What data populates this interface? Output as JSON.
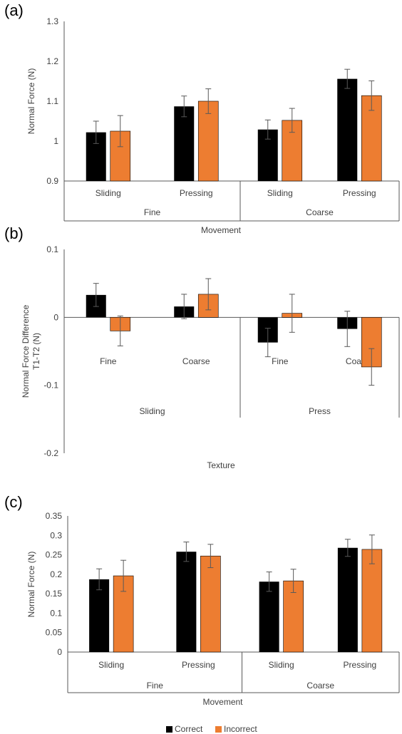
{
  "colors": {
    "correct": "#000000",
    "incorrect": "#ED7D31",
    "axis": "#595959",
    "error": "#595959",
    "text": "#404040"
  },
  "legend": {
    "correct": "Correct",
    "incorrect": "Incorrect"
  },
  "chart_data": [
    {
      "panel": "(a)",
      "type": "bar",
      "ylabel": "Normal Force (N)",
      "xlabel": "Movement",
      "ylim": [
        0.9,
        1.3
      ],
      "yticks": [
        "0.9",
        "1",
        "1.1",
        "1.2",
        "1.3"
      ],
      "groups": [
        "Fine",
        "Coarse"
      ],
      "categories": [
        "Sliding",
        "Pressing",
        "Sliding",
        "Pressing"
      ],
      "series": [
        {
          "name": "Correct",
          "values": [
            1.022,
            1.087,
            1.029,
            1.156
          ],
          "errors": [
            0.028,
            0.026,
            0.024,
            0.024
          ]
        },
        {
          "name": "Incorrect",
          "values": [
            1.025,
            1.1,
            1.052,
            1.114
          ],
          "errors": [
            0.039,
            0.031,
            0.03,
            0.037
          ]
        }
      ]
    },
    {
      "panel": "(b)",
      "type": "bar",
      "ylabel": "Normal Force  Difference T1-T2 (N)",
      "ylabel_lines": [
        "Normal Force  Difference",
        "T1-T2 (N)"
      ],
      "xlabel": "Texture",
      "ylim": [
        -0.2,
        0.1
      ],
      "yticks": [
        "-0.2",
        "-0.1",
        "0",
        "0.1"
      ],
      "groups": [
        "Sliding",
        "Press"
      ],
      "categories": [
        "Fine",
        "Coarse",
        "Fine",
        "Coarse"
      ],
      "series": [
        {
          "name": "Correct",
          "values": [
            0.033,
            0.016,
            -0.037,
            -0.017
          ],
          "errors": [
            0.017,
            0.018,
            0.021,
            0.026
          ]
        },
        {
          "name": "Incorrect",
          "values": [
            -0.02,
            0.034,
            0.006,
            -0.073
          ],
          "errors": [
            0.022,
            0.023,
            0.028,
            0.027
          ]
        }
      ]
    },
    {
      "panel": "(c)",
      "type": "bar",
      "ylabel": "Normal Force (N)",
      "xlabel": "Movement",
      "ylim": [
        0,
        0.35
      ],
      "yticks": [
        "0",
        "0.05",
        "0.1",
        "0.15",
        "0.2",
        "0.25",
        "0.3",
        "0.35"
      ],
      "groups": [
        "Fine",
        "Coarse"
      ],
      "categories": [
        "Sliding",
        "Pressing",
        "Sliding",
        "Pressing"
      ],
      "series": [
        {
          "name": "Correct",
          "values": [
            0.187,
            0.258,
            0.181,
            0.268
          ],
          "errors": [
            0.027,
            0.025,
            0.025,
            0.022
          ]
        },
        {
          "name": "Incorrect",
          "values": [
            0.196,
            0.247,
            0.183,
            0.264
          ],
          "errors": [
            0.04,
            0.03,
            0.03,
            0.037
          ]
        }
      ]
    }
  ]
}
